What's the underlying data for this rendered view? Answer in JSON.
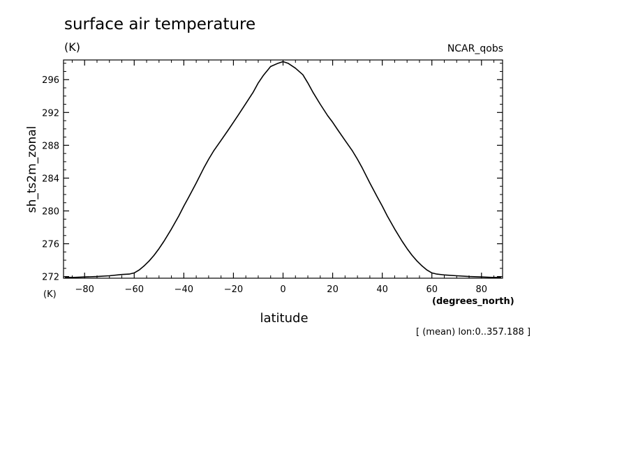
{
  "header": {
    "title": "surface air temperature",
    "title_units": "(K)",
    "dataset": "NCAR_qobs"
  },
  "footer": {
    "subset_note": "[ (mean) lon:0..357.188 ]"
  },
  "chart_data": {
    "type": "line",
    "title": "surface air temperature",
    "xlabel": "latitude",
    "xunits": "(degrees_north)",
    "ylabel": "sh_ts2m_zonal",
    "yunits": "(K)",
    "xlim": [
      -88.5,
      88.5
    ],
    "ylim": [
      271.8,
      298.4
    ],
    "x_ticks": [
      -80,
      -60,
      -40,
      -20,
      0,
      20,
      40,
      60,
      80
    ],
    "x_tick_labels": [
      "−80",
      "−60",
      "−40",
      "−20",
      "0",
      "20",
      "40",
      "60",
      "80"
    ],
    "y_ticks": [
      272,
      276,
      280,
      284,
      288,
      292,
      296
    ],
    "y_tick_labels": [
      "272",
      "276",
      "280",
      "284",
      "288",
      "292",
      "296"
    ],
    "line_color": "#000000",
    "grid": false,
    "series": [
      {
        "x": [
          -87.9,
          -84,
          -80,
          -75,
          -70,
          -65,
          -62,
          -60,
          -58,
          -56,
          -54,
          -52,
          -50,
          -48,
          -45,
          -42,
          -40,
          -38,
          -35,
          -32,
          -30,
          -28,
          -25,
          -22,
          -20,
          -18,
          -15,
          -12,
          -10,
          -8,
          -5,
          -2,
          0,
          2,
          5,
          8,
          10,
          12,
          15,
          18,
          20,
          22,
          25,
          28,
          30,
          32,
          35,
          38,
          40,
          42,
          45,
          48,
          50,
          52,
          54,
          56,
          58,
          60,
          62,
          65,
          70,
          75,
          80,
          84,
          87.9
        ],
        "values": [
          271.9,
          271.9,
          271.95,
          272.0,
          272.1,
          272.25,
          272.3,
          272.45,
          272.8,
          273.3,
          273.9,
          274.6,
          275.4,
          276.3,
          277.8,
          279.4,
          280.6,
          281.7,
          283.4,
          285.2,
          286.3,
          287.3,
          288.6,
          289.9,
          290.8,
          291.7,
          293.1,
          294.5,
          295.6,
          296.5,
          297.6,
          298.0,
          298.2,
          298.0,
          297.4,
          296.6,
          295.6,
          294.5,
          293.0,
          291.6,
          290.8,
          289.9,
          288.6,
          287.3,
          286.3,
          285.2,
          283.4,
          281.7,
          280.6,
          279.4,
          277.8,
          276.3,
          275.4,
          274.6,
          273.9,
          273.3,
          272.8,
          272.45,
          272.3,
          272.2,
          272.1,
          272.0,
          271.95,
          271.9,
          271.9
        ]
      }
    ]
  }
}
